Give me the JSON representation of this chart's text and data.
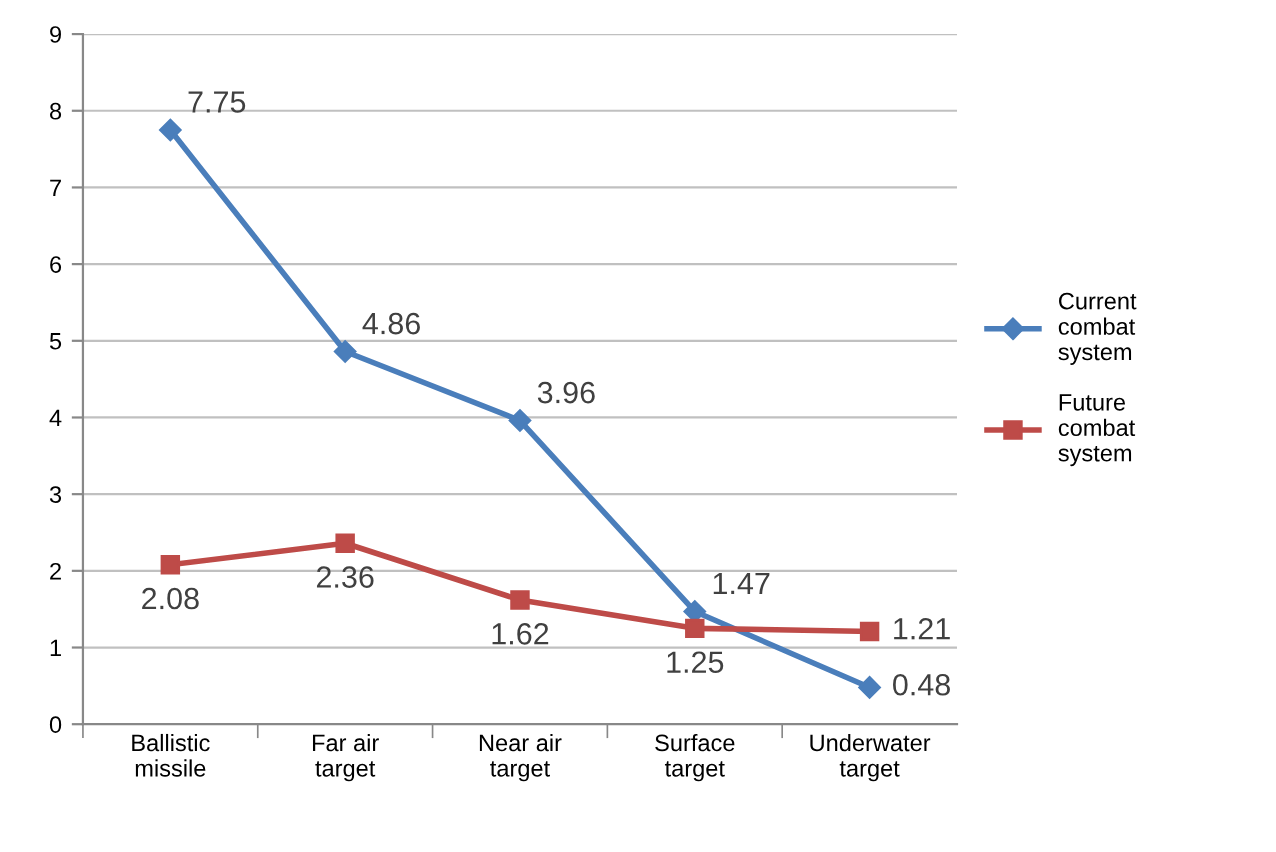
{
  "chart_data": {
    "type": "line",
    "categories": [
      "Ballistic missile",
      "Far air target",
      "Near air target",
      "Surface target",
      "Underwater target"
    ],
    "series": [
      {
        "name": "Current combat system",
        "color": "#4a7ebb",
        "marker": "diamond",
        "values": [
          7.75,
          4.86,
          3.96,
          1.47,
          0.48
        ]
      },
      {
        "name": "Future combat system",
        "color": "#be4b48",
        "marker": "square",
        "values": [
          2.08,
          2.36,
          1.62,
          1.25,
          1.21
        ]
      }
    ],
    "ylim": [
      0,
      9
    ],
    "yticks": [
      0,
      1,
      2,
      3,
      4,
      5,
      6,
      7,
      8,
      9
    ],
    "grid": "y",
    "legend": "right",
    "data_labels": true,
    "line_style": "solid"
  }
}
